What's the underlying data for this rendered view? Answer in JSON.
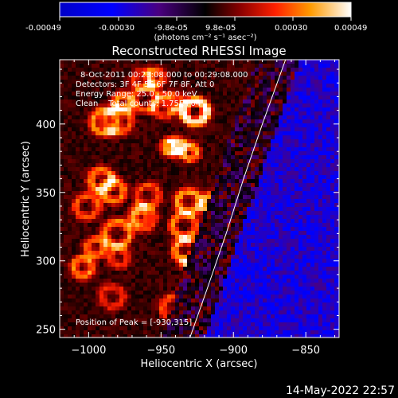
{
  "colorbar": {
    "tick_labels": [
      "-0.00049",
      "-0.00030",
      "-9.8e-05",
      "9.8e-05",
      "0.00030",
      "0.00049"
    ],
    "unit_label": "(photons cm⁻² s⁻¹ asec⁻²)",
    "range": [
      -0.00049,
      0.00049
    ]
  },
  "chart_data": {
    "type": "heatmap",
    "title": "Reconstructed RHESSI Image",
    "xlabel": "Heliocentric X (arcsec)",
    "ylabel": "Heliocentric Y (arcsec)",
    "xlim": [
      -1020,
      -827
    ],
    "ylim": [
      244,
      447
    ],
    "x_ticks": [
      -1000,
      -950,
      -900,
      -850
    ],
    "y_ticks": [
      250,
      300,
      350,
      400
    ],
    "x_tick_labels": [
      "−1000",
      "−950",
      "−900",
      "−850"
    ],
    "y_tick_labels": [
      "250",
      "300",
      "350",
      "400"
    ],
    "grid": false,
    "limb_curve": [
      {
        "x": -930,
        "y": 244
      },
      {
        "x": -918,
        "y": 280
      },
      {
        "x": -905,
        "y": 320
      },
      {
        "x": -893,
        "y": 360
      },
      {
        "x": -880,
        "y": 400
      },
      {
        "x": -864,
        "y": 447
      }
    ],
    "annotations": [
      "8-Oct-2011 00:23:08.000 to 00:29:08.000",
      "Detectors: 3F 4F 5F 6F 7F 8F, Att 0",
      "Energy Range: 25.0 - 50.0 keV",
      "Clean    Total counts: 1.75E+04",
      "Position of Peak = [-930,315]"
    ]
  },
  "footer": {
    "date": "14-May-2022 22:57"
  }
}
